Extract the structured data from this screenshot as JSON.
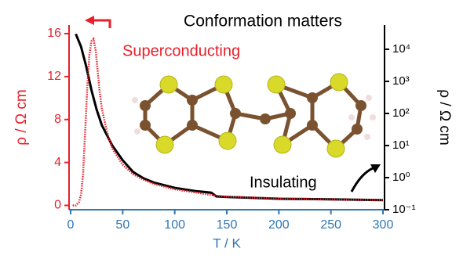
{
  "chart_data": {
    "type": "line",
    "title": "Conformation matters",
    "x_label": "T / K",
    "y_label": "ρ / Ω cm",
    "y2_label": "ρ / Ω cm",
    "xlim": [
      -1.5,
      301.5
    ],
    "xticks": [
      0,
      50,
      100,
      150,
      200,
      250,
      300
    ],
    "ylim": [
      -0.4,
      16.8
    ],
    "yticks": [
      0,
      4,
      8,
      12,
      16
    ],
    "y2lim": [
      0.1,
      57000
    ],
    "y2_log": true,
    "y2ticks": [
      {
        "value": 0.1,
        "label": "10⁻¹"
      },
      {
        "value": 1,
        "label": "10⁰"
      },
      {
        "value": 10,
        "label": "10¹"
      },
      {
        "value": 100,
        "label": "10²"
      },
      {
        "value": 1000,
        "label": "10³"
      },
      {
        "value": 10000,
        "label": "10⁴"
      }
    ],
    "series": [
      {
        "name": "Superconducting",
        "color": "#e8202a",
        "axis": "y",
        "x": [
          2,
          5,
          8,
          10,
          12,
          14,
          16,
          18,
          20,
          22,
          24,
          26,
          28,
          30,
          35,
          40,
          50,
          60,
          70,
          80,
          100,
          120,
          140,
          150,
          200,
          250,
          300
        ],
        "values": [
          0,
          0,
          0.3,
          1,
          3,
          7,
          11,
          14,
          15.3,
          15.5,
          14.5,
          12.5,
          10.5,
          9,
          6.8,
          5.3,
          3.8,
          2.9,
          2.4,
          2.0,
          1.5,
          1.2,
          0.9,
          0.8,
          0.65,
          0.55,
          0.5
        ]
      },
      {
        "name": "Insulating",
        "color": "#000000",
        "axis": "y2",
        "x": [
          5,
          10,
          15,
          20,
          25,
          30,
          40,
          50,
          60,
          70,
          80,
          100,
          120,
          135,
          140,
          150,
          200,
          250,
          300
        ],
        "values": [
          30000,
          12000,
          2900,
          540,
          130,
          43,
          10,
          3.5,
          1.5,
          0.95,
          0.7,
          0.48,
          0.38,
          0.34,
          0.26,
          0.25,
          0.22,
          0.21,
          0.2
        ]
      }
    ]
  }
}
